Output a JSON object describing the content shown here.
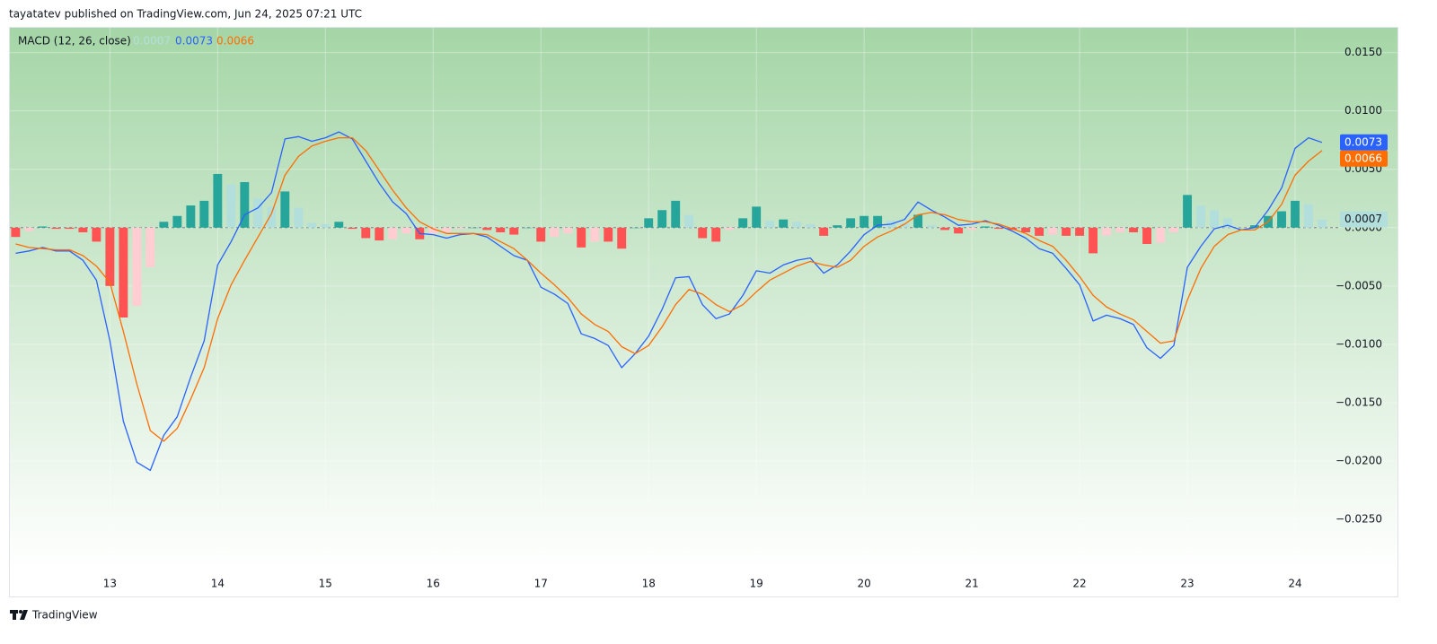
{
  "attribution": "tayatatev published on TradingView.com, Jun 24, 2025 07:21 UTC",
  "brand": "TradingView",
  "chart_data": {
    "type": "combo",
    "indicator": "MACD (12, 26, close)",
    "x": [
      12.125,
      12.25,
      12.375,
      12.5,
      12.625,
      12.75,
      12.875,
      13,
      13.125,
      13.25,
      13.375,
      13.5,
      13.625,
      13.75,
      13.875,
      14,
      14.125,
      14.25,
      14.375,
      14.5,
      14.625,
      14.75,
      14.875,
      15,
      15.125,
      15.25,
      15.375,
      15.5,
      15.625,
      15.75,
      15.875,
      16,
      16.125,
      16.25,
      16.375,
      16.5,
      16.625,
      16.75,
      16.875,
      17,
      17.125,
      17.25,
      17.375,
      17.5,
      17.625,
      17.75,
      17.875,
      18,
      18.125,
      18.25,
      18.375,
      18.5,
      18.625,
      18.75,
      18.875,
      19,
      19.125,
      19.25,
      19.375,
      19.5,
      19.625,
      19.75,
      19.875,
      20,
      20.125,
      20.25,
      20.375,
      20.5,
      20.625,
      20.75,
      20.875,
      21,
      21.125,
      21.25,
      21.375,
      21.5,
      21.625,
      21.75,
      21.875,
      22,
      22.125,
      22.25,
      22.375,
      22.5,
      22.625,
      22.75,
      22.875,
      23,
      23.125,
      23.25,
      23.375,
      23.5,
      23.625,
      23.75,
      23.875,
      24,
      24.125,
      24.25
    ],
    "series": [
      {
        "type": "histogram",
        "colors": [
          "#26a69a",
          "#b2dfdb",
          "#ff5252",
          "#ffcdd2"
        ],
        "values": [
          -0.0008,
          -0.0003,
          0.0001,
          -0.0001,
          -0.0001,
          -0.0004,
          -0.0012,
          -0.005,
          -0.0077,
          -0.0067,
          -0.0034,
          0.0005,
          0.001,
          0.0019,
          0.0023,
          0.0046,
          0.0037,
          0.0039,
          0.0025,
          0.0018,
          0.0031,
          0.0017,
          0.0004,
          0.0003,
          0.0005,
          -0.0001,
          -0.0009,
          -0.0011,
          -0.001,
          -0.0005,
          -0.001,
          -0.0005,
          -0.0004,
          -0.0001,
          0.0,
          -0.0002,
          -0.0004,
          -0.0006,
          0.0,
          -0.0012,
          -0.0008,
          -0.0005,
          -0.0017,
          -0.0012,
          -0.0012,
          -0.0018,
          0.0,
          0.0008,
          0.0015,
          0.0023,
          0.0011,
          -0.0009,
          -0.0012,
          -0.0002,
          0.0008,
          0.0018,
          0.0006,
          0.0007,
          0.0005,
          0.0003,
          -0.0007,
          0.0002,
          0.0008,
          0.001,
          0.001,
          0.0006,
          0.0004,
          0.0011,
          0.0002,
          -0.0002,
          -0.0005,
          -0.0002,
          0.0001,
          -0.0001,
          -0.0002,
          -0.0004,
          -0.0007,
          -0.0006,
          -0.0007,
          -0.0007,
          -0.0022,
          -0.0007,
          -0.0004,
          -0.0004,
          -0.0014,
          -0.0013,
          -0.0004,
          0.0028,
          0.0019,
          0.0015,
          0.0008,
          0.0,
          0.0002,
          0.001,
          0.0014,
          0.0023,
          0.002,
          0.0007
        ]
      },
      {
        "type": "line",
        "color": "#2962ff",
        "values": [
          -0.0022,
          -0.002,
          -0.0017,
          -0.002,
          -0.002,
          -0.0028,
          -0.0045,
          -0.0097,
          -0.0166,
          -0.0201,
          -0.0208,
          -0.0178,
          -0.0162,
          -0.0128,
          -0.0097,
          -0.0032,
          -0.0012,
          0.0011,
          0.0017,
          0.003,
          0.0076,
          0.0078,
          0.0074,
          0.0077,
          0.0082,
          0.0076,
          0.0057,
          0.0038,
          0.0022,
          0.0012,
          -0.0005,
          -0.0006,
          -0.0009,
          -0.0006,
          -0.0005,
          -0.0008,
          -0.0016,
          -0.0024,
          -0.0028,
          -0.0051,
          -0.0057,
          -0.0065,
          -0.0091,
          -0.0095,
          -0.0101,
          -0.012,
          -0.0108,
          -0.0093,
          -0.007,
          -0.0043,
          -0.0042,
          -0.0066,
          -0.0078,
          -0.0074,
          -0.0058,
          -0.0037,
          -0.0039,
          -0.0032,
          -0.0028,
          -0.0026,
          -0.0039,
          -0.0032,
          -0.002,
          -0.0006,
          0.0002,
          0.0003,
          0.0007,
          0.0022,
          0.0015,
          0.0009,
          0.0002,
          0.0003,
          0.0006,
          0.0002,
          -0.0003,
          -0.0009,
          -0.0018,
          -0.0022,
          -0.0035,
          -0.0049,
          -0.008,
          -0.0075,
          -0.0078,
          -0.0083,
          -0.0103,
          -0.0112,
          -0.0101,
          -0.0034,
          -0.0016,
          -0.0001,
          0.0002,
          -0.0002,
          0.0,
          0.0015,
          0.0034,
          0.0068,
          0.0077,
          0.0073
        ]
      },
      {
        "type": "line",
        "color": "#ff6d00",
        "values": [
          -0.0014,
          -0.0017,
          -0.0018,
          -0.0019,
          -0.0019,
          -0.0024,
          -0.0033,
          -0.0047,
          -0.0089,
          -0.0134,
          -0.0174,
          -0.0183,
          -0.0172,
          -0.0147,
          -0.012,
          -0.0078,
          -0.0049,
          -0.0028,
          -0.0008,
          0.0012,
          0.0045,
          0.0061,
          0.007,
          0.0074,
          0.0077,
          0.0077,
          0.0066,
          0.0049,
          0.0032,
          0.0017,
          0.0005,
          -0.0001,
          -0.0005,
          -0.0005,
          -0.0005,
          -0.0006,
          -0.0012,
          -0.0018,
          -0.0028,
          -0.0039,
          -0.0049,
          -0.006,
          -0.0074,
          -0.0083,
          -0.0089,
          -0.0102,
          -0.0108,
          -0.0101,
          -0.0085,
          -0.0066,
          -0.0053,
          -0.0057,
          -0.0066,
          -0.0072,
          -0.0066,
          -0.0055,
          -0.0045,
          -0.0039,
          -0.0033,
          -0.0029,
          -0.0032,
          -0.0034,
          -0.0028,
          -0.0016,
          -0.0008,
          -0.0003,
          0.0003,
          0.0011,
          0.0013,
          0.0011,
          0.0007,
          0.0005,
          0.0005,
          0.0003,
          -0.0001,
          -0.0005,
          -0.0011,
          -0.0016,
          -0.0028,
          -0.0042,
          -0.0058,
          -0.0068,
          -0.0074,
          -0.0079,
          -0.0089,
          -0.0099,
          -0.0097,
          -0.0062,
          -0.0035,
          -0.0016,
          -0.0006,
          -0.0002,
          -0.0002,
          0.0005,
          0.002,
          0.0045,
          0.0057,
          0.0066
        ]
      }
    ],
    "xlim": [
      12.08,
      24.4
    ],
    "xticks": [
      13,
      14,
      15,
      16,
      17,
      18,
      19,
      20,
      21,
      22,
      23,
      24
    ],
    "ylim": [
      -0.0293,
      0.0172
    ],
    "yticks": [
      {
        "value": 0.015,
        "label": "0.0150"
      },
      {
        "value": 0.01,
        "label": "0.0100"
      },
      {
        "value": 0.005,
        "label": "0.0050"
      },
      {
        "value": 0,
        "label": "0.0000"
      },
      {
        "value": -0.005,
        "label": "−0.0050"
      },
      {
        "value": -0.01,
        "label": "−0.0100"
      },
      {
        "value": -0.015,
        "label": "−0.0150"
      },
      {
        "value": -0.02,
        "label": "−0.0200"
      },
      {
        "value": -0.025,
        "label": "−0.0250"
      }
    ],
    "grid": true
  }
}
